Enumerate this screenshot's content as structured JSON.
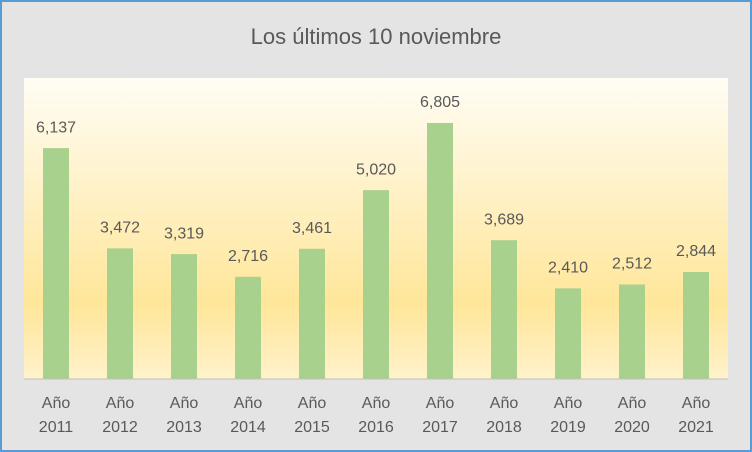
{
  "chart_data": {
    "type": "bar",
    "title": "Los últimos 10 noviembre",
    "categories": [
      "Año 2011",
      "Año 2012",
      "Año 2013",
      "Año 2014",
      "Año 2015",
      "Año 2016",
      "Año 2017",
      "Año 2018",
      "Año 2019",
      "Año 2020",
      "Año 2021"
    ],
    "values": [
      6137,
      3472,
      3319,
      2716,
      3461,
      5020,
      6805,
      3689,
      2410,
      2512,
      2844
    ],
    "value_labels": [
      "6,137",
      "3,472",
      "3,319",
      "2,716",
      "3,461",
      "5,020",
      "6,805",
      "3,689",
      "2,410",
      "2,512",
      "2,844"
    ],
    "color": "#a9d18e",
    "ylim": [
      0,
      8000
    ]
  }
}
